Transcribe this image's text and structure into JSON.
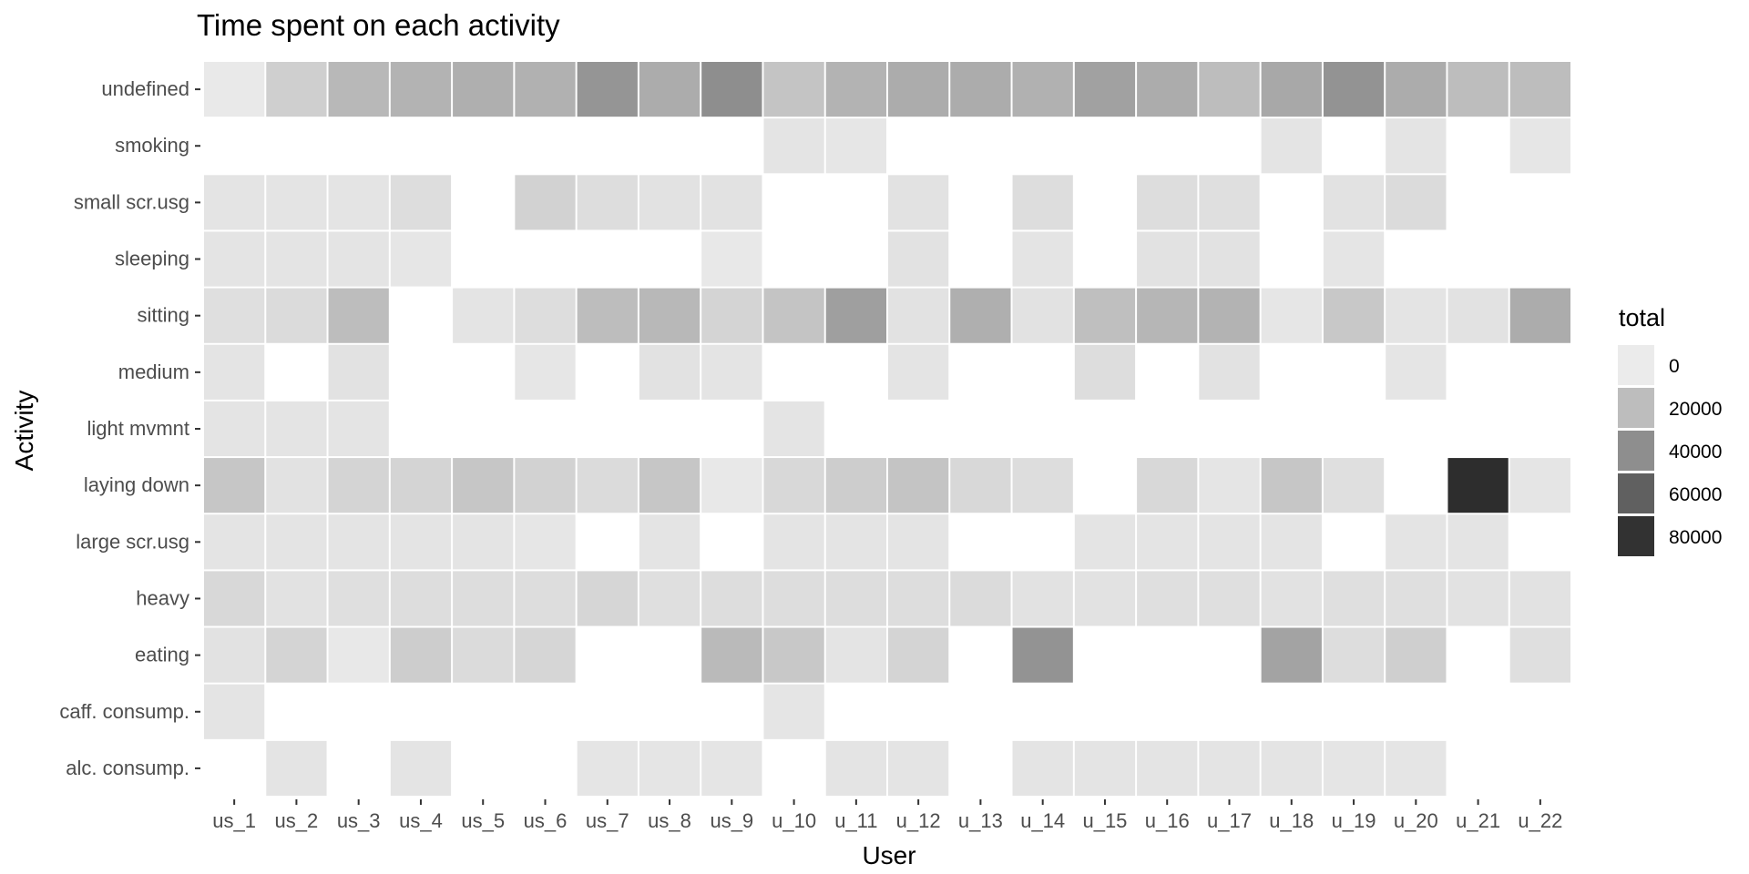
{
  "chart_data": {
    "type": "heatmap",
    "title": "Time spent on each activity",
    "xlabel": "User",
    "ylabel": "Activity",
    "x": [
      "us_1",
      "us_2",
      "us_3",
      "us_4",
      "us_5",
      "us_6",
      "us_7",
      "us_8",
      "us_9",
      "u_10",
      "u_11",
      "u_12",
      "u_13",
      "u_14",
      "u_15",
      "u_16",
      "u_17",
      "u_18",
      "u_19",
      "u_20",
      "u_21",
      "u_22"
    ],
    "y": [
      "undefined",
      "smoking",
      "small scr.usg",
      "sleeping",
      "sitting",
      "medium",
      "light mvmnt",
      "laying down",
      "large scr.usg",
      "heavy",
      "eating",
      "caff. consump.",
      "alc. consump."
    ],
    "values": [
      [
        1000,
        12000,
        22000,
        24000,
        26000,
        25000,
        37000,
        27000,
        40000,
        17000,
        24000,
        27000,
        27000,
        25000,
        32000,
        27000,
        20000,
        29000,
        38000,
        27000,
        20000,
        20000
      ],
      [
        null,
        null,
        null,
        null,
        null,
        null,
        null,
        null,
        null,
        3000,
        2000,
        null,
        null,
        null,
        null,
        null,
        null,
        3000,
        null,
        3000,
        null,
        2000
      ],
      [
        3000,
        3000,
        3000,
        6000,
        null,
        11000,
        6000,
        4000,
        4000,
        null,
        null,
        4000,
        null,
        6000,
        null,
        6000,
        5000,
        null,
        4000,
        7000,
        null,
        null
      ],
      [
        3000,
        3000,
        3000,
        2000,
        null,
        null,
        null,
        null,
        1500,
        null,
        null,
        4000,
        null,
        3000,
        null,
        4000,
        4000,
        null,
        2500,
        null,
        null,
        null
      ],
      [
        5000,
        7000,
        20000,
        null,
        3000,
        6000,
        20000,
        22000,
        10000,
        17000,
        33000,
        4000,
        26000,
        4000,
        19000,
        23000,
        24000,
        2000,
        15000,
        3000,
        4000,
        27000
      ],
      [
        3000,
        null,
        4000,
        null,
        null,
        2000,
        null,
        4000,
        3000,
        null,
        null,
        3000,
        null,
        null,
        6000,
        null,
        4000,
        null,
        null,
        2500,
        null,
        null
      ],
      [
        3000,
        3000,
        3000,
        null,
        null,
        null,
        null,
        null,
        null,
        3000,
        null,
        null,
        null,
        null,
        null,
        null,
        null,
        null,
        null,
        null,
        null,
        null
      ],
      [
        16000,
        4000,
        10000,
        10000,
        16000,
        11000,
        7000,
        16000,
        1500,
        8000,
        13000,
        17000,
        8000,
        6000,
        null,
        8000,
        2500,
        16000,
        5000,
        null,
        82000,
        2500
      ],
      [
        3000,
        3000,
        3000,
        3000,
        3000,
        2000,
        null,
        3000,
        null,
        3000,
        3000,
        3000,
        null,
        null,
        3000,
        3000,
        3000,
        3000,
        null,
        3000,
        3000,
        null
      ],
      [
        8000,
        4000,
        5000,
        6000,
        6000,
        6000,
        9000,
        5000,
        6000,
        6000,
        6000,
        6000,
        7000,
        4000,
        4000,
        5000,
        5000,
        4000,
        5000,
        5000,
        4000,
        4000
      ],
      [
        4000,
        10000,
        1500,
        13000,
        7000,
        9000,
        null,
        null,
        21000,
        15000,
        3000,
        10000,
        null,
        38000,
        null,
        null,
        null,
        31000,
        6000,
        12000,
        null,
        5000
      ],
      [
        3000,
        null,
        null,
        null,
        null,
        null,
        null,
        null,
        null,
        2500,
        null,
        null,
        null,
        null,
        null,
        null,
        null,
        null,
        null,
        null,
        null,
        null
      ],
      [
        null,
        3000,
        null,
        3000,
        null,
        null,
        2500,
        2500,
        2500,
        null,
        3000,
        3000,
        null,
        3000,
        3000,
        3000,
        3000,
        3000,
        2500,
        2500,
        null,
        null
      ]
    ],
    "colorscale": {
      "low": "#ebebeb",
      "high": "#262626",
      "domain": [
        0,
        85000
      ],
      "na_color": "#ffffff"
    },
    "legend": {
      "title": "total",
      "position": "right",
      "entries": [
        {
          "label": "0",
          "value": 0
        },
        {
          "label": "20000",
          "value": 20000
        },
        {
          "label": "40000",
          "value": 40000
        },
        {
          "label": "60000",
          "value": 60000
        },
        {
          "label": "80000",
          "value": 80000
        }
      ]
    },
    "grid": false
  }
}
